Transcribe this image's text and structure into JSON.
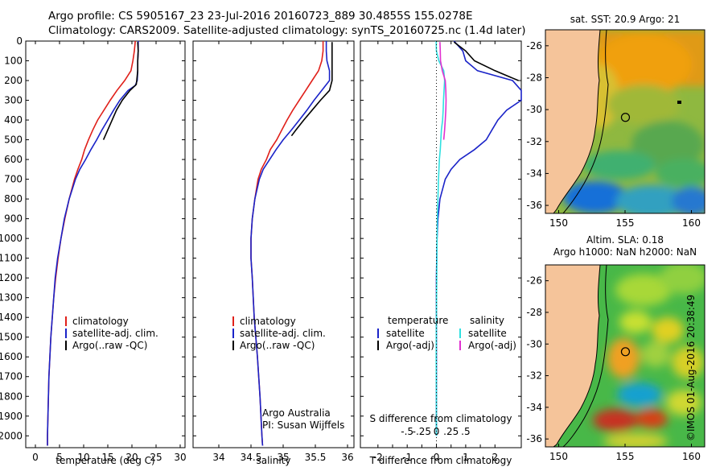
{
  "header": {
    "line1": "Argo profile: CS 5905167_23 23-Jul-2016 20160723_889 30.4855S 155.0278E",
    "line2": "Climatology: CARS2009. Satellite-adjusted climatology: synTS_20160725.nc (1.4d later)"
  },
  "credit": "©IMOS 01-Aug-2016 20:38:49",
  "colors": {
    "climatology": "#e0201a",
    "satellite": "#1a23c8",
    "argo": "#000000",
    "sal_satellite": "#2fe0e0",
    "sal_argo": "#e030d0",
    "land": "#f5c49a",
    "coast": "#000000"
  },
  "chart_data": [
    {
      "type": "line",
      "panel": "temperature",
      "xlabel": "temperature (deg C)",
      "ylabel": "",
      "xlim": [
        -2,
        31
      ],
      "ylim": [
        2060,
        0
      ],
      "xticks": [
        0,
        5,
        10,
        15,
        20,
        25,
        30
      ],
      "yticks": [
        0,
        100,
        200,
        300,
        400,
        500,
        600,
        700,
        800,
        900,
        1000,
        1100,
        1200,
        1300,
        1400,
        1500,
        1600,
        1700,
        1800,
        1900,
        2000
      ],
      "legend": [
        "climatology",
        "satellite-adj. clim.",
        "Argo(..raw -QC)"
      ],
      "series": [
        {
          "name": "climatology",
          "color": "#e0201a",
          "depth": [
            0,
            50,
            100,
            150,
            200,
            250,
            300,
            350,
            400,
            450,
            500,
            550,
            600,
            650,
            700,
            800,
            900,
            1000,
            1100,
            1200,
            1300,
            1400,
            1500,
            1600,
            1700,
            1800,
            1900,
            2000,
            2050
          ],
          "values": [
            20.7,
            20.5,
            20.2,
            19.8,
            18.5,
            16.9,
            15.5,
            14.2,
            12.9,
            11.9,
            11.0,
            10.2,
            9.6,
            8.8,
            8.1,
            7.0,
            6.1,
            5.3,
            4.7,
            4.2,
            3.8,
            3.5,
            3.2,
            3.0,
            2.8,
            2.7,
            2.6,
            2.5,
            2.5
          ]
        },
        {
          "name": "satellite-adj. clim.",
          "color": "#1a23c8",
          "depth": [
            0,
            50,
            100,
            150,
            200,
            225,
            250,
            300,
            350,
            400,
            450,
            500,
            550,
            600,
            650,
            700,
            800,
            900,
            1000,
            1100,
            1200,
            1300,
            1400,
            1500,
            1600,
            1700,
            1800,
            1900,
            2000,
            2050
          ],
          "values": [
            21.3,
            21.3,
            21.2,
            21.2,
            21.1,
            20.7,
            19.2,
            17.5,
            16.2,
            15.0,
            13.8,
            12.7,
            11.5,
            10.4,
            9.2,
            8.3,
            7.0,
            6.0,
            5.3,
            4.6,
            4.1,
            3.8,
            3.5,
            3.2,
            3.0,
            2.8,
            2.7,
            2.6,
            2.5,
            2.5
          ]
        },
        {
          "name": "Argo(..raw -QC)",
          "color": "#000000",
          "depth": [
            5,
            50,
            100,
            150,
            200,
            220,
            250,
            300,
            350,
            400,
            450,
            500
          ],
          "values": [
            21.2,
            21.3,
            21.2,
            21.2,
            21.0,
            20.9,
            19.6,
            18.0,
            16.8,
            15.9,
            15.0,
            14.1
          ]
        }
      ]
    },
    {
      "type": "line",
      "panel": "salinity",
      "xlabel": "salinity",
      "ylabel": "",
      "xlim": [
        33.6,
        36.1
      ],
      "ylim": [
        2060,
        0
      ],
      "xticks": [
        34,
        34.5,
        35,
        35.5,
        36
      ],
      "legend": [
        "climatology",
        "satellite-adj. clim.",
        "Argo(..raw -QC)"
      ],
      "annotation": [
        "Argo Australia",
        "PI: Susan Wijffels"
      ],
      "series": [
        {
          "name": "climatology",
          "color": "#e0201a",
          "depth": [
            0,
            50,
            100,
            150,
            200,
            250,
            300,
            350,
            400,
            450,
            500,
            550,
            600,
            650,
            700,
            800,
            900,
            1000,
            1100,
            1200,
            1400,
            1600,
            1800,
            2000,
            2050
          ],
          "values": [
            35.62,
            35.62,
            35.6,
            35.55,
            35.45,
            35.35,
            35.25,
            35.15,
            35.06,
            34.98,
            34.9,
            34.8,
            34.74,
            34.66,
            34.61,
            34.56,
            34.52,
            34.5,
            34.5,
            34.52,
            34.55,
            34.6,
            34.64,
            34.67,
            34.68
          ]
        },
        {
          "name": "satellite-adj. clim.",
          "color": "#1a23c8",
          "depth": [
            0,
            50,
            100,
            150,
            200,
            250,
            300,
            350,
            400,
            450,
            500,
            550,
            600,
            650,
            700,
            800,
            900,
            1000,
            1100,
            1200,
            1400,
            1600,
            1800,
            2000,
            2050
          ],
          "values": [
            35.67,
            35.67,
            35.68,
            35.72,
            35.72,
            35.6,
            35.48,
            35.37,
            35.25,
            35.13,
            35.0,
            34.89,
            34.79,
            34.69,
            34.63,
            34.56,
            34.52,
            34.5,
            34.5,
            34.52,
            34.55,
            34.6,
            34.64,
            34.67,
            34.68
          ]
        },
        {
          "name": "Argo(..raw -QC)",
          "color": "#000000",
          "depth": [
            5,
            50,
            100,
            150,
            200,
            250,
            300,
            350,
            400,
            450,
            480
          ],
          "values": [
            35.76,
            35.76,
            35.76,
            35.76,
            35.76,
            35.72,
            35.58,
            35.45,
            35.32,
            35.2,
            35.13
          ]
        }
      ]
    },
    {
      "type": "line",
      "panel": "difference",
      "xlabel": "T difference from climatology",
      "xlabel_top": "S difference from climatology",
      "xlim": [
        -2.6,
        2.9
      ],
      "ylim": [
        2060,
        0
      ],
      "xticks": [
        -2,
        -1.5,
        -1,
        -0.5,
        0,
        0.5,
        1,
        1.5,
        2
      ],
      "xticks_labelled": [
        -2,
        -1,
        0,
        1,
        2
      ],
      "sticks": [
        -0.5,
        -0.25,
        0,
        0.25,
        0.5
      ],
      "legend_groups": [
        {
          "title": "temperature",
          "items": [
            "satellite",
            "Argo(-adj)"
          ]
        },
        {
          "title": "salinity",
          "items": [
            "satellite",
            "Argo(-adj)"
          ]
        }
      ],
      "series": [
        {
          "name": "temperature satellite",
          "color": "#1a23c8",
          "depth": [
            0,
            50,
            100,
            150,
            200,
            250,
            300,
            350,
            400,
            450,
            500,
            550,
            600,
            650,
            700,
            800,
            900,
            1000,
            1200,
            1500,
            2000
          ],
          "values": [
            0.6,
            0.9,
            1.0,
            1.4,
            2.6,
            3.3,
            2.9,
            2.4,
            2.1,
            1.9,
            1.7,
            1.3,
            0.8,
            0.5,
            0.3,
            0.12,
            0.05,
            0.02,
            0.0,
            0.0,
            0.0
          ]
        },
        {
          "name": "temperature Argo(-adj)",
          "color": "#000000",
          "depth": [
            5,
            50,
            100,
            150,
            200
          ],
          "values": [
            0.6,
            1.0,
            1.3,
            2.0,
            2.8
          ]
        },
        {
          "name": "salinity satellite",
          "color": "#2fe0e0",
          "depth": [
            0,
            50,
            100,
            150,
            200,
            250,
            300,
            350,
            400,
            450,
            500,
            550,
            600,
            700,
            800,
            900,
            1000,
            1200,
            1400,
            1600,
            1800,
            2000
          ],
          "values": [
            -0.01,
            0.0,
            0.08,
            0.25,
            0.28,
            0.26,
            0.24,
            0.23,
            0.21,
            0.17,
            0.15,
            0.13,
            0.1,
            0.07,
            0.05,
            0.03,
            0.02,
            0.01,
            0.0,
            -0.01,
            0.0,
            0.0
          ]
        },
        {
          "name": "salinity Argo(-adj)",
          "color": "#e030d0",
          "depth": [
            5,
            50,
            100,
            150,
            200,
            250,
            300,
            350,
            400,
            450,
            500
          ],
          "values": [
            0.12,
            0.13,
            0.14,
            0.2,
            0.3,
            0.32,
            0.33,
            0.32,
            0.3,
            0.28,
            0.25
          ]
        }
      ]
    },
    {
      "type": "heatmap",
      "panel": "sst_map",
      "title": "sat. SST: 20.9 Argo: 21",
      "xlim": [
        149,
        161
      ],
      "ylim": [
        -36.5,
        -25
      ],
      "xticks": [
        150,
        155,
        160
      ],
      "yticks": [
        -26,
        -28,
        -30,
        -32,
        -34,
        -36
      ],
      "argo_position": {
        "lon": 155.0278,
        "lat": -30.4855
      }
    },
    {
      "type": "heatmap",
      "panel": "sla_map",
      "title": [
        "Altim. SLA: 0.18",
        "Argo h1000: NaN h2000: NaN"
      ],
      "xlim": [
        149,
        161
      ],
      "ylim": [
        -36.5,
        -25
      ],
      "xticks": [
        150,
        155,
        160
      ],
      "yticks": [
        -26,
        -28,
        -30,
        -32,
        -34,
        -36
      ],
      "argo_position": {
        "lon": 155.0278,
        "lat": -30.4855
      }
    }
  ]
}
